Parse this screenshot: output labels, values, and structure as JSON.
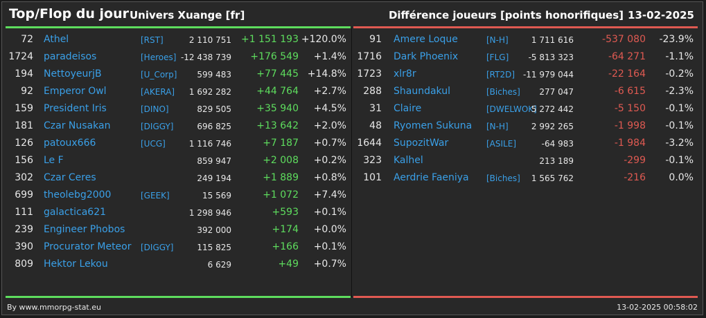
{
  "header": {
    "title": "Top/Flop du jour",
    "subtitle": "Univers Xuange [fr]",
    "metric": "Différence joueurs [points honorifiques]",
    "date": "13-02-2025"
  },
  "colors": {
    "positive": "#5edd5e",
    "negative": "#e05a52",
    "link": "#3aa0e8"
  },
  "top": [
    {
      "rank": "72",
      "name": "Athel",
      "guild": "[RST]",
      "points": "2 110 751",
      "diff": "+1 151 193",
      "pct": "+120.0%"
    },
    {
      "rank": "1724",
      "name": "paradeisos",
      "guild": "[Heroes]",
      "points": "-12 438 739",
      "diff": "+176 549",
      "pct": "+1.4%"
    },
    {
      "rank": "194",
      "name": "NettoyeurjB",
      "guild": "[U_Corp]",
      "points": "599 483",
      "diff": "+77 445",
      "pct": "+14.8%"
    },
    {
      "rank": "92",
      "name": "Emperor Owl",
      "guild": "[AKERA]",
      "points": "1 692 282",
      "diff": "+44 764",
      "pct": "+2.7%"
    },
    {
      "rank": "159",
      "name": "President Iris",
      "guild": "[DINO]",
      "points": "829 505",
      "diff": "+35 940",
      "pct": "+4.5%"
    },
    {
      "rank": "181",
      "name": "Czar Nusakan",
      "guild": "[DIGGY]",
      "points": "696 825",
      "diff": "+13 642",
      "pct": "+2.0%"
    },
    {
      "rank": "126",
      "name": "patoux666",
      "guild": "[UCG]",
      "points": "1 116 746",
      "diff": "+7 187",
      "pct": "+0.7%"
    },
    {
      "rank": "156",
      "name": "Le F",
      "guild": "",
      "points": "859 947",
      "diff": "+2 008",
      "pct": "+0.2%"
    },
    {
      "rank": "302",
      "name": "Czar Ceres",
      "guild": "",
      "points": "249 194",
      "diff": "+1 889",
      "pct": "+0.8%"
    },
    {
      "rank": "699",
      "name": "theolebg2000",
      "guild": "[GEEK]",
      "points": "15 569",
      "diff": "+1 072",
      "pct": "+7.4%"
    },
    {
      "rank": "111",
      "name": "galactica621",
      "guild": "",
      "points": "1 298 946",
      "diff": "+593",
      "pct": "+0.1%"
    },
    {
      "rank": "239",
      "name": "Engineer Phobos",
      "guild": "",
      "points": "392 000",
      "diff": "+174",
      "pct": "+0.0%"
    },
    {
      "rank": "390",
      "name": "Procurator Meteor",
      "guild": "[DIGGY]",
      "points": "115 825",
      "diff": "+166",
      "pct": "+0.1%"
    },
    {
      "rank": "809",
      "name": "Hektor Lekou",
      "guild": "",
      "points": "6 629",
      "diff": "+49",
      "pct": "+0.7%"
    }
  ],
  "flop": [
    {
      "rank": "91",
      "name": "Amere Loque",
      "guild": "[N-H]",
      "points": "1 711 616",
      "diff": "-537 080",
      "pct": "-23.9%"
    },
    {
      "rank": "1716",
      "name": "Dark Phoenix",
      "guild": "[FLG]",
      "points": "-5 813 323",
      "diff": "-64 271",
      "pct": "-1.1%"
    },
    {
      "rank": "1723",
      "name": "xlr8r",
      "guild": "[RT2D]",
      "points": "-11 979 044",
      "diff": "-22 164",
      "pct": "-0.2%"
    },
    {
      "rank": "288",
      "name": "Shaundakul",
      "guild": "[Biches]",
      "points": "277 047",
      "diff": "-6 615",
      "pct": "-2.3%"
    },
    {
      "rank": "31",
      "name": "Claire",
      "guild": "[DWELWOK]",
      "points": "5 272 442",
      "diff": "-5 150",
      "pct": "-0.1%"
    },
    {
      "rank": "48",
      "name": "Ryomen Sukuna",
      "guild": "[N-H]",
      "points": "2 992 265",
      "diff": "-1 998",
      "pct": "-0.1%"
    },
    {
      "rank": "1644",
      "name": "SupozitWar",
      "guild": "[ASILE]",
      "points": "-64 983",
      "diff": "-1 984",
      "pct": "-3.2%"
    },
    {
      "rank": "323",
      "name": "Kalhel",
      "guild": "",
      "points": "213 189",
      "diff": "-299",
      "pct": "-0.1%"
    },
    {
      "rank": "101",
      "name": "Aerdrie Faeniya",
      "guild": "[Biches]",
      "points": "1 565 762",
      "diff": "-216",
      "pct": "0.0%"
    }
  ],
  "footer": {
    "credit": "By www.mmorpg-stat.eu",
    "timestamp": "13-02-2025 00:58:02"
  }
}
